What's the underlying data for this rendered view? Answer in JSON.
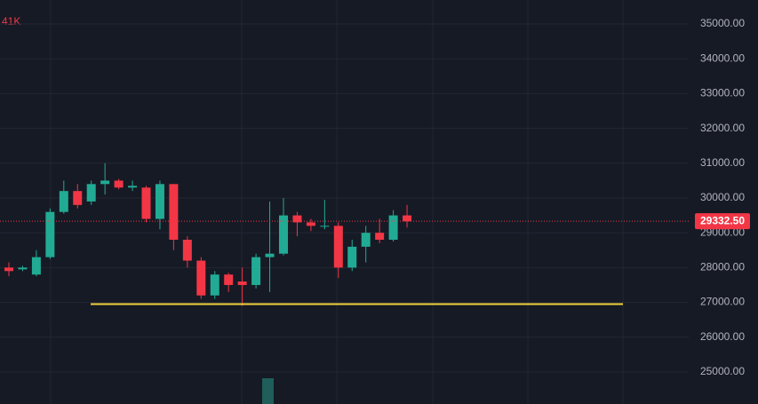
{
  "chart_data": {
    "type": "candlestick",
    "volume_label": "41K",
    "open": [
      28000,
      27950,
      27800,
      28300,
      29600,
      30200,
      29900,
      30400,
      30500,
      30300,
      30300,
      29400,
      30400,
      28800,
      28200,
      27200,
      27800,
      27600,
      27500,
      28300,
      28400,
      29500,
      29300,
      29200,
      29200,
      28000,
      28600,
      29000,
      28800,
      29500
    ],
    "high": [
      28150,
      28050,
      28500,
      29700,
      30500,
      30400,
      30500,
      31000,
      30550,
      30500,
      30350,
      30500,
      30400,
      28900,
      28300,
      27900,
      27850,
      28000,
      28400,
      29900,
      30000,
      29600,
      29400,
      29950,
      29300,
      28800,
      29200,
      29400,
      29650,
      29800
    ],
    "low": [
      27750,
      27900,
      27750,
      28250,
      29550,
      29700,
      29800,
      30100,
      30250,
      30200,
      29300,
      29100,
      28500,
      28000,
      27100,
      27100,
      27300,
      26900,
      27400,
      27300,
      28350,
      28900,
      29050,
      29100,
      27700,
      27900,
      28150,
      28700,
      28750,
      29150
    ],
    "close": [
      27900,
      28000,
      28300,
      29600,
      30200,
      29800,
      30400,
      30500,
      30300,
      30350,
      29400,
      30400,
      28800,
      28200,
      27200,
      27800,
      27500,
      27500,
      28300,
      28400,
      29500,
      29300,
      29200,
      29200,
      28000,
      28600,
      29000,
      28800,
      29500,
      29330
    ],
    "up_color": "#22ab94",
    "down_color": "#f23645",
    "level_line": {
      "value": 26950,
      "color": "#f2d33c"
    },
    "last_price": {
      "value": 29332.5,
      "label": "29332.50"
    },
    "ylim": [
      24080,
      35690
    ],
    "yticks": [
      {
        "value": 25000,
        "label": "25000.00"
      },
      {
        "value": 26000,
        "label": "26000.00"
      },
      {
        "value": 27000,
        "label": "27000.00"
      },
      {
        "value": 28000,
        "label": "28000.00"
      },
      {
        "value": 29000,
        "label": "29000.00"
      },
      {
        "value": 30000,
        "label": "30000.00"
      },
      {
        "value": 31000,
        "label": "31000.00"
      },
      {
        "value": 32000,
        "label": "32000.00"
      },
      {
        "value": 33000,
        "label": "33000.00"
      },
      {
        "value": 34000,
        "label": "34000.00"
      },
      {
        "value": 35000,
        "label": "35000.00"
      }
    ],
    "grid": true
  }
}
